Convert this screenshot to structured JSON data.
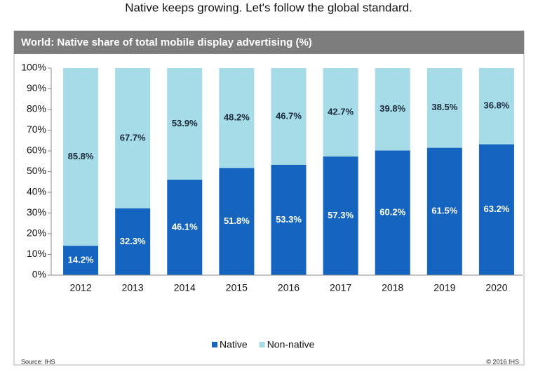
{
  "headline": "Native keeps growing. Let's follow the global standard.",
  "source": "Source: IHS",
  "copyright": "© 2016 IHS",
  "chart_data": {
    "type": "stacked-bar",
    "title": "World: Native share of total mobile display advertising (%)",
    "categories": [
      "2012",
      "2013",
      "2014",
      "2015",
      "2016",
      "2017",
      "2018",
      "2019",
      "2020"
    ],
    "series": [
      {
        "name": "Native",
        "color": "#1565c0",
        "values": [
          14.2,
          32.3,
          46.1,
          51.8,
          53.3,
          57.3,
          60.2,
          61.5,
          63.2
        ],
        "value_labels": [
          "14.2%",
          "32.3%",
          "46.1%",
          "51.8%",
          "53.3%",
          "57.3%",
          "60.2%",
          "61.5%",
          "63.2%"
        ]
      },
      {
        "name": "Non-native",
        "color": "#a6dbe8",
        "values": [
          85.8,
          67.7,
          53.9,
          48.2,
          46.7,
          42.7,
          39.8,
          38.5,
          36.8
        ],
        "value_labels": [
          "85.8%",
          "67.7%",
          "53.9%",
          "48.2%",
          "46.7%",
          "42.7%",
          "39.8%",
          "38.5%",
          "36.8%"
        ]
      }
    ],
    "ylim": [
      0,
      100
    ],
    "yticks": [
      {
        "value": 0,
        "label": "0%"
      },
      {
        "value": 10,
        "label": "10%"
      },
      {
        "value": 20,
        "label": "20%"
      },
      {
        "value": 30,
        "label": "30%"
      },
      {
        "value": 40,
        "label": "40%"
      },
      {
        "value": 50,
        "label": "50%"
      },
      {
        "value": 60,
        "label": "60%"
      },
      {
        "value": 70,
        "label": "70%"
      },
      {
        "value": 80,
        "label": "80%"
      },
      {
        "value": 90,
        "label": "90%"
      },
      {
        "value": 100,
        "label": "100%"
      }
    ],
    "grid": false,
    "legend": "bottom"
  }
}
